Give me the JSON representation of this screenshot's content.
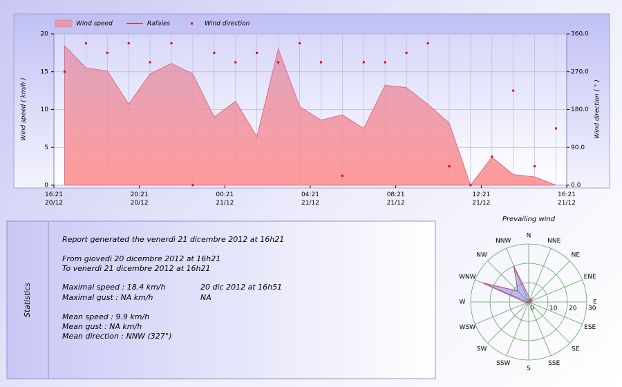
{
  "chart_data": [
    {
      "type": "area",
      "xlim": [
        0,
        24
      ],
      "xticks": [
        {
          "value": 0,
          "label": "16:21 20/12"
        },
        {
          "value": 4,
          "label": "20:21 20/12"
        },
        {
          "value": 8,
          "label": "00:21 21/12"
        },
        {
          "value": 12,
          "label": "04:21 21/12"
        },
        {
          "value": 16,
          "label": "08:21 21/12"
        },
        {
          "value": 20,
          "label": "12:21 21/12"
        },
        {
          "value": 24,
          "label": "16:21 21/12"
        }
      ],
      "x": [
        0.5,
        1.5,
        2.5,
        3.5,
        4.5,
        5.5,
        6.5,
        7.5,
        8.5,
        9.5,
        10.5,
        11.5,
        12.5,
        13.5,
        14.5,
        15.5,
        16.5,
        17.5,
        18.5,
        19.5,
        20.5,
        21.5,
        22.5,
        23.5
      ],
      "ylabel": "Wind speed  ( km/h )",
      "y2label": "Wind direction  ( ° )",
      "ylim": [
        0,
        20
      ],
      "yticks": [
        0,
        5,
        10,
        15,
        20
      ],
      "y2lim": [
        0,
        360
      ],
      "y2ticks": [
        {
          "value": 0,
          "label": "0.0"
        },
        {
          "value": 90,
          "label": "90.0"
        },
        {
          "value": 180,
          "label": "180.0"
        },
        {
          "value": 270,
          "label": "270.0"
        },
        {
          "value": 360,
          "label": "360.0"
        }
      ],
      "grid": true,
      "series": [
        {
          "name": "Wind speed",
          "type": "area",
          "color": "#e06a86",
          "values": [
            18.4,
            15.5,
            15.1,
            10.7,
            14.7,
            16.1,
            14.7,
            9.0,
            11.1,
            6.4,
            18.0,
            10.4,
            8.6,
            9.3,
            7.5,
            13.2,
            12.9,
            10.7,
            8.2,
            0,
            3.7,
            1.4,
            1.1,
            0
          ]
        },
        {
          "name": "Rafales",
          "type": "line",
          "color": "#cc0000",
          "values": [
            null,
            null,
            null,
            null,
            null,
            null,
            null,
            null,
            null,
            null,
            null,
            null,
            null,
            null,
            null,
            null,
            null,
            null,
            null,
            null,
            null,
            null,
            null,
            null
          ]
        },
        {
          "name": "Wind direction",
          "type": "scatter",
          "axis": "y2",
          "color": "#dd0000",
          "values": [
            270,
            337.5,
            315,
            337.5,
            292.5,
            337.5,
            0,
            315,
            292.5,
            315,
            292.5,
            337.5,
            292.5,
            22.5,
            292.5,
            292.5,
            315,
            337.5,
            45,
            0,
            67.5,
            225,
            45,
            135
          ]
        }
      ]
    },
    {
      "type": "radar",
      "title": "Prevailing wind",
      "categories": [
        "N",
        "NNE",
        "NE",
        "ENE",
        "E",
        "ESE",
        "SE",
        "SSE",
        "S",
        "SSW",
        "SW",
        "WSW",
        "W",
        "WNW",
        "NW",
        "NNW"
      ],
      "rlim": [
        0,
        30
      ],
      "rticks": [
        0,
        10,
        20,
        30
      ],
      "color": "#7070dd",
      "values": [
        3,
        1,
        3,
        1,
        2,
        0,
        0,
        0,
        0,
        0,
        0,
        1,
        2,
        26,
        8,
        20
      ]
    }
  ],
  "statistics": {
    "title": "Statistics",
    "report": "Report generated the venerdì 21 dicembre 2012 at 16h21",
    "from": "From giovedì 20 dicembre 2012 at 16h21",
    "to": "To venerdì 21 dicembre 2012 at 16h21",
    "max_speed": "Maximal speed : 18.4 km/h",
    "max_speed_date": "20 dic 2012 at 16h51",
    "max_gust": "Maximal gust : NA km/h",
    "max_gust_date": "NA",
    "mean_speed": "Mean speed : 9.9 km/h",
    "mean_gust": "Mean gust : NA km/h",
    "mean_direction": "Mean direction : NNW (327°)"
  }
}
